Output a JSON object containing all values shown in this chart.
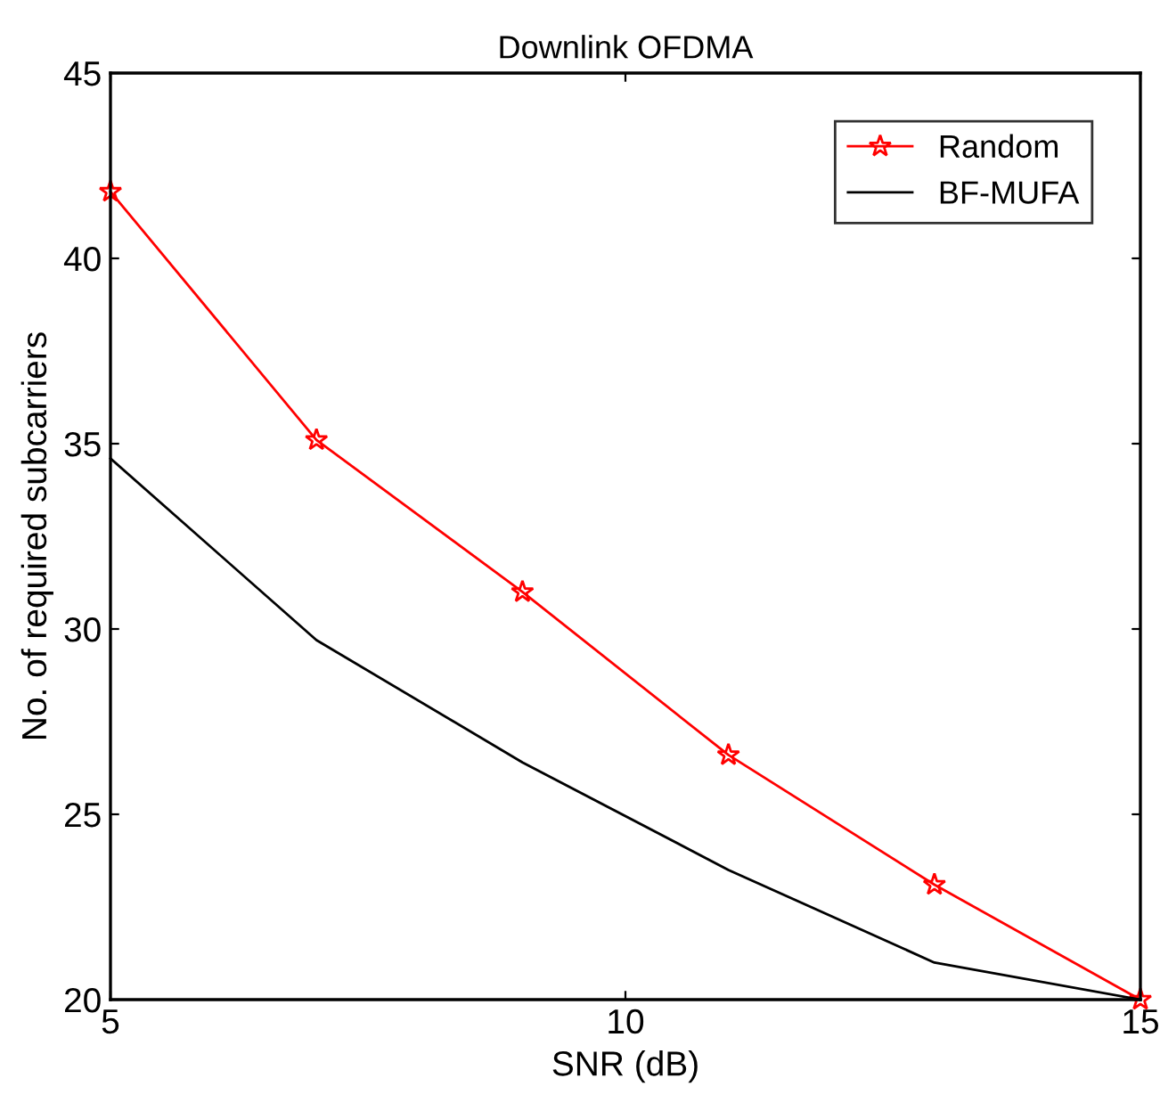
{
  "chart_data": {
    "type": "line",
    "title": "Downlink OFDMA",
    "xlabel": "SNR (dB)",
    "ylabel": "No. of required subcarriers",
    "x": [
      5,
      7,
      9,
      11,
      13,
      15
    ],
    "series": [
      {
        "name": "Random",
        "color": "#ff0000",
        "marker": "star",
        "values": [
          41.8,
          35.1,
          31.0,
          26.6,
          23.1,
          20.0
        ]
      },
      {
        "name": "BF-MUFA",
        "color": "#000000",
        "marker": "none",
        "values": [
          34.6,
          29.7,
          26.4,
          23.5,
          21.0,
          20.0
        ]
      }
    ],
    "xlim": [
      5,
      15
    ],
    "xticks": [
      5,
      10,
      15
    ],
    "ylim": [
      20,
      45
    ],
    "yticks": [
      20,
      25,
      30,
      35,
      40,
      45
    ],
    "grid": false,
    "legend": "top right",
    "line_style": "solid"
  }
}
